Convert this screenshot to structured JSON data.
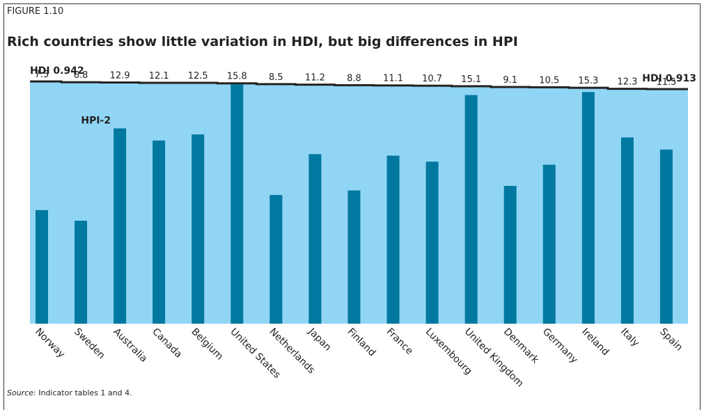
{
  "chart_data": {
    "type": "bar",
    "figure_label": "FIGURE 1.10",
    "title": "Rich countries show little variation in HDI, but big differences in HPI",
    "categories": [
      "Norway",
      "Sweden",
      "Australia",
      "Canada",
      "Belgium",
      "United States",
      "Netherlands",
      "Japan",
      "Finland",
      "France",
      "Luxembourg",
      "United Kingdom",
      "Denmark",
      "Germany",
      "Ireland",
      "Italy",
      "Spain"
    ],
    "series": [
      {
        "name": "HPI-2",
        "color": "#00789f",
        "values": [
          7.5,
          6.8,
          12.9,
          12.1,
          12.5,
          15.8,
          8.5,
          11.2,
          8.8,
          11.1,
          10.7,
          15.1,
          9.1,
          10.5,
          15.3,
          12.3,
          11.5
        ]
      },
      {
        "type": "area",
        "axis": "y2",
        "color": "#91d5f4",
        "line_color": "#222222",
        "values": [
          0.942,
          0.939,
          0.938,
          0.937,
          0.937,
          0.935,
          0.932,
          0.93,
          0.928,
          0.927,
          0.926,
          0.924,
          0.921,
          0.92,
          0.918,
          0.914,
          0.913
        ],
        "value_labels": [
          "HDI 0.942",
          null,
          null,
          null,
          null,
          null,
          null,
          null,
          null,
          null,
          null,
          null,
          null,
          null,
          null,
          null,
          "HDI 0.913"
        ]
      }
    ],
    "ylim": [
      0,
      16
    ],
    "y2lim": [
      0.9,
      0.95
    ],
    "source_label": "Source:",
    "source": "Indicator tables 1 and 4."
  }
}
